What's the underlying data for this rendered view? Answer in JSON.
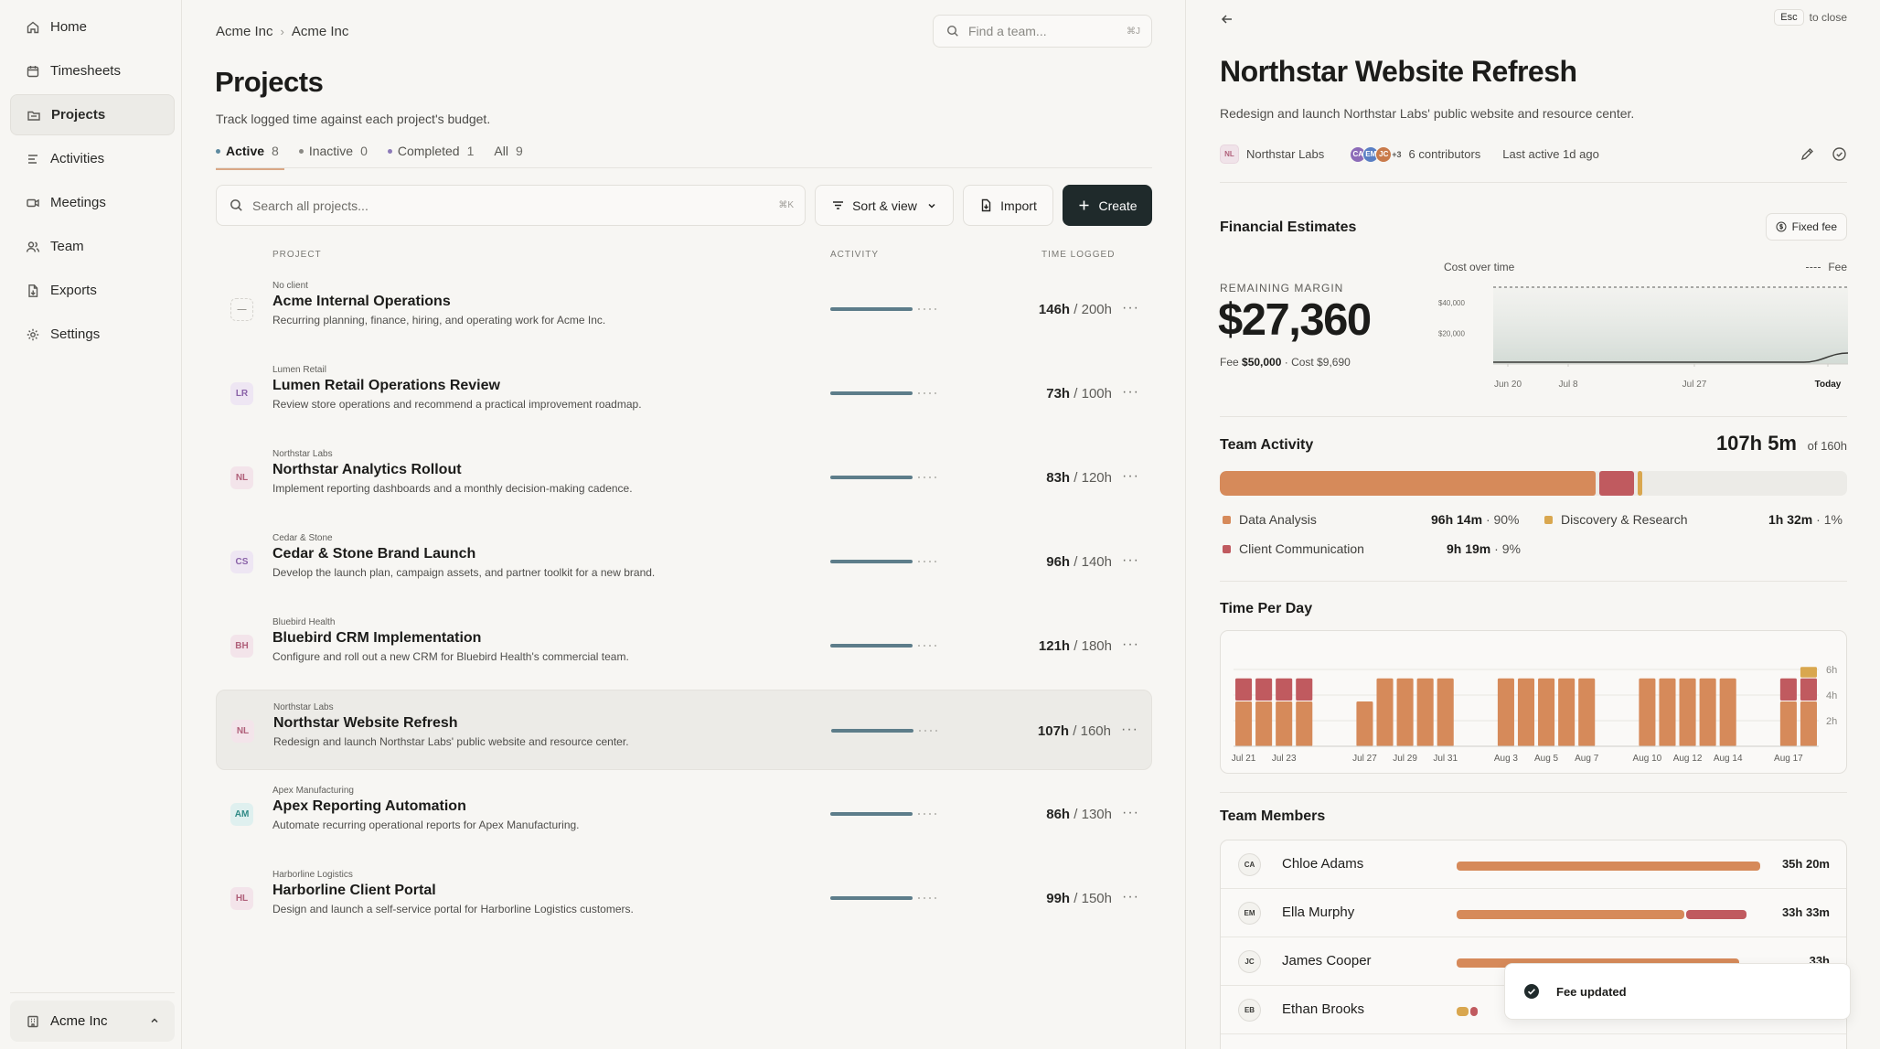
{
  "sidebar": {
    "items": [
      {
        "label": "Home",
        "icon": "home-icon"
      },
      {
        "label": "Timesheets",
        "icon": "calendar-icon"
      },
      {
        "label": "Projects",
        "icon": "folder-icon",
        "active": true
      },
      {
        "label": "Activities",
        "icon": "list-icon"
      },
      {
        "label": "Meetings",
        "icon": "video-icon"
      },
      {
        "label": "Team",
        "icon": "users-icon"
      },
      {
        "label": "Exports",
        "icon": "file-export-icon"
      },
      {
        "label": "Settings",
        "icon": "gear-icon"
      }
    ],
    "workspace": "Acme Inc"
  },
  "header": {
    "breadcrumb": [
      "Acme Inc",
      "Acme Inc"
    ],
    "find_team_placeholder": "Find a team...",
    "find_team_shortcut": "⌘J",
    "title": "Projects",
    "subtitle": "Track logged time against each project's budget."
  },
  "tabs": [
    {
      "label": "Active",
      "count": "8",
      "dot": "#5d8aa0",
      "active": true
    },
    {
      "label": "Inactive",
      "count": "0",
      "dot": "#8a8984"
    },
    {
      "label": "Completed",
      "count": "1",
      "dot": "#8c7ab8"
    },
    {
      "label": "All",
      "count": "9"
    }
  ],
  "toolbar": {
    "search_placeholder": "Search all projects...",
    "search_shortcut": "⌘K",
    "sort_label": "Sort & view",
    "import_label": "Import",
    "create_label": "Create"
  },
  "columns": {
    "project": "PROJECT",
    "activity": "ACTIVITY",
    "time_logged": "TIME LOGGED"
  },
  "projects": [
    {
      "initials": "—",
      "avatar_bg": "#f7f6f3",
      "avatar_fg": "#9a9893",
      "client": "No client",
      "name": "Acme Internal Operations",
      "description": "Recurring planning, finance, hiring, and operating work for Acme Inc.",
      "logged": "146h",
      "budget": "/ 200h",
      "progress": 0.73
    },
    {
      "initials": "LR",
      "avatar_bg": "#eee6f3",
      "avatar_fg": "#8a62a8",
      "client": "Lumen Retail",
      "name": "Lumen Retail Operations Review",
      "description": "Review store operations and recommend a practical improvement roadmap.",
      "logged": "73h",
      "budget": "/ 100h",
      "progress": 0.73
    },
    {
      "initials": "NL",
      "avatar_bg": "#f3e4ea",
      "avatar_fg": "#b0607a",
      "client": "Northstar Labs",
      "name": "Northstar Analytics Rollout",
      "description": "Implement reporting dashboards and a monthly decision-making cadence.",
      "logged": "83h",
      "budget": "/ 120h",
      "progress": 0.69
    },
    {
      "initials": "CS",
      "avatar_bg": "#eee6f3",
      "avatar_fg": "#8a62a8",
      "client": "Cedar & Stone",
      "name": "Cedar & Stone Brand Launch",
      "description": "Develop the launch plan, campaign assets, and partner toolkit for a new brand.",
      "logged": "96h",
      "budget": "/ 140h",
      "progress": 0.69
    },
    {
      "initials": "BH",
      "avatar_bg": "#f3e4ea",
      "avatar_fg": "#b0607a",
      "client": "Bluebird Health",
      "name": "Bluebird CRM Implementation",
      "description": "Configure and roll out a new CRM for Bluebird Health's commercial team.",
      "logged": "121h",
      "budget": "/ 180h",
      "progress": 0.67
    },
    {
      "initials": "NL",
      "avatar_bg": "#f3e4ea",
      "avatar_fg": "#b0607a",
      "client": "Northstar Labs",
      "name": "Northstar Website Refresh",
      "description": "Redesign and launch Northstar Labs' public website and resource center.",
      "logged": "107h",
      "budget": "/ 160h",
      "progress": 0.67,
      "selected": true
    },
    {
      "initials": "AM",
      "avatar_bg": "#dff0ef",
      "avatar_fg": "#2f8a86",
      "client": "Apex Manufacturing",
      "name": "Apex Reporting Automation",
      "description": "Automate recurring operational reports for Apex Manufacturing.",
      "logged": "86h",
      "budget": "/ 130h",
      "progress": 0.66
    },
    {
      "initials": "HL",
      "avatar_bg": "#f3e4ea",
      "avatar_fg": "#b0607a",
      "client": "Harborline Logistics",
      "name": "Harborline Client Portal",
      "description": "Design and launch a self-service portal for Harborline Logistics customers.",
      "logged": "99h",
      "budget": "/ 150h",
      "progress": 0.66
    }
  ],
  "detail": {
    "esc_key": "Esc",
    "esc_label": "to close",
    "title": "Northstar Website Refresh",
    "subtitle": "Redesign and launch Northstar Labs' public website and resource center.",
    "client_initials": "NL",
    "client": "Northstar Labs",
    "contributors": [
      {
        "initials": "CA",
        "color": "#8c6bb8"
      },
      {
        "initials": "EM",
        "color": "#5a7fc4"
      },
      {
        "initials": "JC",
        "color": "#c97a4a"
      }
    ],
    "contributors_more": "+3",
    "contributors_label": "6 contributors",
    "last_active": "Last active 1d ago",
    "financial": {
      "title": "Financial Estimates",
      "badge": "Fixed fee",
      "margin_label": "REMAINING MARGIN",
      "margin_value": "$27,360",
      "fee_label": "Fee",
      "fee_value": "$50,000",
      "cost_text": "· Cost $9,690"
    },
    "cost_chart": {
      "label": "Cost over time",
      "legend_fee": "Fee"
    },
    "team_activity": {
      "title": "Team Activity",
      "total": "107h 5m",
      "of_label": "of 160h",
      "legend": [
        {
          "name": "Data Analysis",
          "value": "96h 14m",
          "pct": "· 90%",
          "color": "#d68a5a"
        },
        {
          "name": "Discovery & Research",
          "value": "1h 32m",
          "pct": "· 1%",
          "color": "#d9a74f"
        },
        {
          "name": "Client Communication",
          "value": "9h 19m",
          "pct": "· 9%",
          "color": "#c05a5f"
        }
      ]
    },
    "time_per_day": {
      "title": "Time Per Day"
    },
    "team_members": {
      "title": "Team Members",
      "members": [
        {
          "initials": "CA",
          "name": "Chloe Adams",
          "hours": "35h 20m",
          "share_primary": 1.0,
          "share_secondary": 0.0
        },
        {
          "initials": "EM",
          "name": "Ella Murphy",
          "hours": "33h 33m",
          "share_primary": 0.75,
          "share_secondary": 0.2
        },
        {
          "initials": "JC",
          "name": "James Cooper",
          "hours": "33h",
          "share_primary": 0.93,
          "share_secondary": 0.0
        },
        {
          "initials": "EB",
          "name": "Ethan Brooks",
          "hours": "",
          "share_primary": 0.04,
          "share_secondary": 0.025
        }
      ]
    }
  },
  "toast": {
    "text": "Fee updated"
  },
  "chart_data": [
    {
      "type": "area",
      "title": "Cost over time",
      "x": [
        "Jun 20",
        "Jul 8",
        "Jul 27",
        "Today"
      ],
      "yticks": [
        "$20,000",
        "$40,000"
      ],
      "ylim": [
        0,
        50000
      ],
      "series": [
        {
          "name": "Fee",
          "style": "dashed",
          "values": [
            50000,
            50000,
            50000,
            50000
          ]
        },
        {
          "values": [
            0,
            0,
            0,
            9690
          ]
        }
      ]
    },
    {
      "type": "bar",
      "title": "Time Per Day",
      "x_ticks": [
        "Jul 21",
        "Jul 23",
        "Jul 27",
        "Jul 29",
        "Jul 31",
        "Aug 3",
        "Aug 5",
        "Aug 7",
        "Aug 10",
        "Aug 12",
        "Aug 14",
        "Aug 17"
      ],
      "yticks": [
        "2h",
        "4h",
        "6h"
      ],
      "ylim": [
        0,
        7
      ],
      "stacked": true,
      "days": [
        {
          "x": "Jul 21",
          "values": [
            3.5,
            1.8,
            0
          ]
        },
        {
          "x": "Jul 22",
          "values": [
            3.5,
            1.8,
            0
          ]
        },
        {
          "x": "Jul 23",
          "values": [
            3.5,
            1.8,
            0
          ]
        },
        {
          "x": "Jul 24",
          "values": [
            3.5,
            1.8,
            0
          ]
        },
        {
          "x": "Jul 25",
          "values": [
            0,
            0,
            0
          ]
        },
        {
          "x": "Jul 26",
          "values": [
            0,
            0,
            0
          ]
        },
        {
          "x": "Jul 27",
          "values": [
            3.5,
            0,
            0
          ]
        },
        {
          "x": "Jul 28",
          "values": [
            5.3,
            0,
            0
          ]
        },
        {
          "x": "Jul 29",
          "values": [
            5.3,
            0,
            0
          ]
        },
        {
          "x": "Jul 30",
          "values": [
            5.3,
            0,
            0
          ]
        },
        {
          "x": "Jul 31",
          "values": [
            5.3,
            0,
            0
          ]
        },
        {
          "x": "Aug 1",
          "values": [
            0,
            0,
            0
          ]
        },
        {
          "x": "Aug 2",
          "values": [
            0,
            0,
            0
          ]
        },
        {
          "x": "Aug 3",
          "values": [
            5.3,
            0,
            0
          ]
        },
        {
          "x": "Aug 4",
          "values": [
            5.3,
            0,
            0
          ]
        },
        {
          "x": "Aug 5",
          "values": [
            5.3,
            0,
            0
          ]
        },
        {
          "x": "Aug 6",
          "values": [
            5.3,
            0,
            0
          ]
        },
        {
          "x": "Aug 7",
          "values": [
            5.3,
            0,
            0
          ]
        },
        {
          "x": "Aug 8",
          "values": [
            0,
            0,
            0
          ]
        },
        {
          "x": "Aug 9",
          "values": [
            0,
            0,
            0
          ]
        },
        {
          "x": "Aug 10",
          "values": [
            5.3,
            0,
            0
          ]
        },
        {
          "x": "Aug 11",
          "values": [
            5.3,
            0,
            0
          ]
        },
        {
          "x": "Aug 12",
          "values": [
            5.3,
            0,
            0
          ]
        },
        {
          "x": "Aug 13",
          "values": [
            5.3,
            0,
            0
          ]
        },
        {
          "x": "Aug 14",
          "values": [
            5.3,
            0,
            0
          ]
        },
        {
          "x": "Aug 15",
          "values": [
            0,
            0,
            0
          ]
        },
        {
          "x": "Aug 16",
          "values": [
            0,
            0,
            0
          ]
        },
        {
          "x": "Aug 17",
          "values": [
            3.5,
            1.8,
            0
          ]
        },
        {
          "x": "Aug 18",
          "values": [
            3.5,
            1.8,
            0.9
          ]
        }
      ],
      "colors": [
        "#d68a5a",
        "#c05a5f",
        "#d9a74f"
      ]
    },
    {
      "type": "bar",
      "title": "Team Activity",
      "stacked": true,
      "total_hours": 160,
      "series": [
        {
          "name": "Data Analysis",
          "hours": 96.23,
          "color": "#d68a5a"
        },
        {
          "name": "Client Communication",
          "hours": 9.32,
          "color": "#c05a5f"
        },
        {
          "name": "Discovery & Research",
          "hours": 1.53,
          "color": "#d9a74f"
        }
      ]
    }
  ]
}
